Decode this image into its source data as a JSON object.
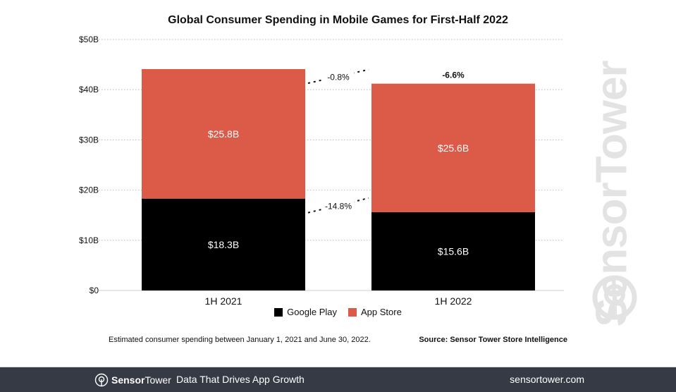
{
  "chart_data": {
    "type": "bar",
    "stacked": true,
    "title": "Global Consumer Spending in Mobile Games for First-Half 2022",
    "categories": [
      "1H 2021",
      "1H 2022"
    ],
    "series": [
      {
        "name": "Google Play",
        "values": [
          18.3,
          15.6
        ],
        "labels": [
          "$18.3B",
          "$15.6B"
        ],
        "color": "#000000"
      },
      {
        "name": "App Store",
        "values": [
          25.8,
          25.6
        ],
        "labels": [
          "$25.8B",
          "$25.6B"
        ],
        "color": "#db5a48"
      }
    ],
    "ylim": [
      0,
      50
    ],
    "yticks": [
      "$0",
      "$10B",
      "$20B",
      "$30B",
      "$40B",
      "$50B"
    ],
    "grid": true,
    "legend_position": "bottom",
    "annotations": {
      "total_change": "-6.6%",
      "app_store_change": "-0.8%",
      "google_play_change": "-14.8%"
    }
  },
  "note": "Estimated consumer spending between January 1, 2021 and June 30, 2022.",
  "source": "Source: Sensor Tower Store Intelligence",
  "watermark": "SensorTower",
  "footer": {
    "brand_bold": "Sensor",
    "brand_light": "Tower",
    "tagline": "Data That Drives App Growth",
    "url": "sensortower.com"
  }
}
